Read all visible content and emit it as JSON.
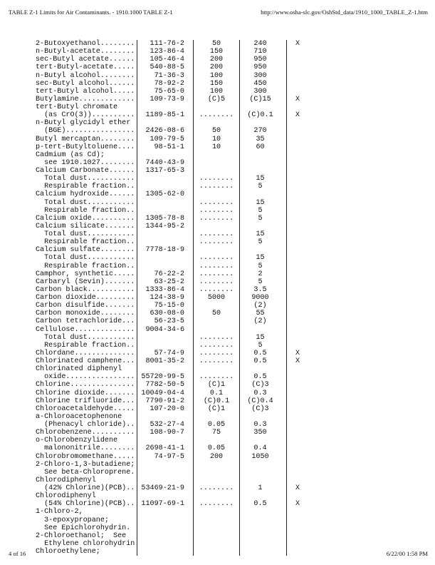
{
  "header": {
    "title": "TABLE Z-1 Limits for Air Contaminants. - 1910.1000 TABLE Z-1",
    "url": "http://www.osha-slc.gov/OshStd_data/1910_1000_TABLE_Z-1.htm"
  },
  "footer": {
    "page": "4 of 16",
    "datetime": "6/22/00 1:58 PM"
  },
  "rows": [
    [
      "2-Butoxyethanol........",
      "111-76-2",
      "50",
      "240",
      "X"
    ],
    [
      "n-Butyl-acetate........",
      "123-86-4",
      "150",
      "710",
      ""
    ],
    [
      "sec-Butyl acetate......",
      "105-46-4",
      "200",
      "950",
      ""
    ],
    [
      "tert-Butyl-acetate.....",
      "540-88-5",
      "200",
      "950",
      ""
    ],
    [
      "n-Butyl alcohol........",
      "71-36-3",
      "100",
      "300",
      ""
    ],
    [
      "sec-Butyl alcohol......",
      "78-92-2",
      "150",
      "450",
      ""
    ],
    [
      "tert-Butyl alcohol.....",
      "75-65-0",
      "100",
      "300",
      ""
    ],
    [
      "Butylamine.............",
      "109-73-9",
      "(C)5",
      "(C)15",
      "X"
    ],
    [
      "tert-Butyl chromate",
      "",
      "",
      "",
      ""
    ],
    [
      "  (as CrO(3))..........",
      "1189-85-1",
      "........",
      "(C)0.1",
      "X"
    ],
    [
      "n-Butyl glycidyl ether",
      "",
      "",
      "",
      ""
    ],
    [
      "  (BGE)................",
      "2426-08-6",
      "50",
      "270",
      ""
    ],
    [
      "Butyl mercaptan........",
      "109-79-5",
      "10",
      "35",
      ""
    ],
    [
      "p-tert-Butyltoluene....",
      "98-51-1",
      "10",
      "60",
      ""
    ],
    [
      "Cadmium (as Cd);",
      "",
      "",
      "",
      ""
    ],
    [
      "  see 1910.1027........",
      "7440-43-9",
      "",
      "",
      ""
    ],
    [
      "Calcium Carbonate......",
      "1317-65-3",
      "",
      "",
      ""
    ],
    [
      "  Total dust...........",
      "",
      "........",
      "15",
      ""
    ],
    [
      "  Respirable fraction..",
      "",
      "........",
      "5",
      ""
    ],
    [
      "Calcium hydroxide......",
      "1305-62-0",
      "",
      "",
      ""
    ],
    [
      "  Total dust...........",
      "",
      "........",
      "15",
      ""
    ],
    [
      "  Respirable fraction..",
      "",
      "........",
      "5",
      ""
    ],
    [
      "Calcium oxide..........",
      "1305-78-8",
      "........",
      "5",
      ""
    ],
    [
      "Calcium silicate.......",
      "1344-95-2",
      "",
      "",
      ""
    ],
    [
      "  Total dust...........",
      "",
      "........",
      "15",
      ""
    ],
    [
      "  Respirable fraction..",
      "",
      "........",
      "5",
      ""
    ],
    [
      "Calcium sulfate........",
      "7778-18-9",
      "",
      "",
      ""
    ],
    [
      "  Total dust...........",
      "",
      "........",
      "15",
      ""
    ],
    [
      "  Respirable fraction..",
      "",
      "........",
      "5",
      ""
    ],
    [
      "Camphor, synthetic.....",
      "76-22-2",
      "........",
      "2",
      ""
    ],
    [
      "Carbaryl (Sevin).......",
      "63-25-2",
      "........",
      "5",
      ""
    ],
    [
      "Carbon black...........",
      "1333-86-4",
      "........",
      "3.5",
      ""
    ],
    [
      "Carbon dioxide.........",
      "124-38-9",
      "5000",
      "9000",
      ""
    ],
    [
      "Carbon disulfide.......",
      "75-15-0",
      "",
      "(2)",
      ""
    ],
    [
      "Carbon monoxide........",
      "630-08-0",
      "50",
      "55",
      ""
    ],
    [
      "Carbon tetrachloride...",
      "56-23-5",
      "",
      "(2)",
      ""
    ],
    [
      "Cellulose..............",
      "9004-34-6",
      "",
      "",
      ""
    ],
    [
      "  Total dust...........",
      "",
      "........",
      "15",
      ""
    ],
    [
      "  Respirable fraction..",
      "",
      "........",
      "5",
      ""
    ],
    [
      "Chlordane..............",
      "57-74-9",
      "........",
      "0.5",
      "X"
    ],
    [
      "Chlorinated camphene...",
      "8001-35-2",
      "........",
      "0.5",
      "X"
    ],
    [
      "Chlorinated diphenyl",
      "",
      "",
      "",
      ""
    ],
    [
      "  oxide................",
      "55720-99-5",
      "........",
      "0.5",
      ""
    ],
    [
      "Chlorine...............",
      "7782-50-5",
      "(C)1",
      "(C)3",
      ""
    ],
    [
      "Chlorine dioxide.......",
      "10049-04-4",
      "0.1",
      "0.3",
      ""
    ],
    [
      "Chlorine trifluoride...",
      "7790-91-2",
      "(C)0.1",
      "(C)0.4",
      ""
    ],
    [
      "Chloroacetaldehyde.....",
      "107-20-0",
      "(C)1",
      "(C)3",
      ""
    ],
    [
      "a-Chloroacetophenone",
      "",
      "",
      "",
      ""
    ],
    [
      "  (Phenacyl chloride)..",
      "532-27-4",
      "0.05",
      "0.3",
      ""
    ],
    [
      "Chlorobenzene..........",
      "108-90-7",
      "75",
      "350",
      ""
    ],
    [
      "o-Chlorobenzylidene",
      "",
      "",
      "",
      ""
    ],
    [
      "  malononitrile........",
      "2698-41-1",
      "0.05",
      "0.4",
      ""
    ],
    [
      "Chlorobromomethane.....",
      "74-97-5",
      "200",
      "1050",
      ""
    ],
    [
      "2-Chloro-1,3-butadiene;",
      "",
      "",
      "",
      ""
    ],
    [
      "  See beta-Chloroprene.",
      "",
      "",
      "",
      ""
    ],
    [
      "Chlorodiphenyl",
      "",
      "",
      "",
      ""
    ],
    [
      "  (42% Chlorine)(PCB)..",
      "53469-21-9",
      "........",
      "1",
      "X"
    ],
    [
      "Chlorodiphenyl",
      "",
      "",
      "",
      ""
    ],
    [
      "  (54% Chlorine)(PCB)..",
      "11097-69-1",
      "........",
      "0.5",
      "X"
    ],
    [
      "1-Chloro-2,",
      "",
      "",
      "",
      ""
    ],
    [
      "  3-epoxypropane;",
      "",
      "",
      "",
      ""
    ],
    [
      "  See Epichlorohydrin.",
      "",
      "",
      "",
      ""
    ],
    [
      "2-Chloroethanol;  See",
      "",
      "",
      "",
      ""
    ],
    [
      "  Ethylene chlorohydrin",
      "",
      "",
      "",
      ""
    ],
    [
      "Chloroethylene;",
      "",
      "",
      "",
      ""
    ]
  ]
}
